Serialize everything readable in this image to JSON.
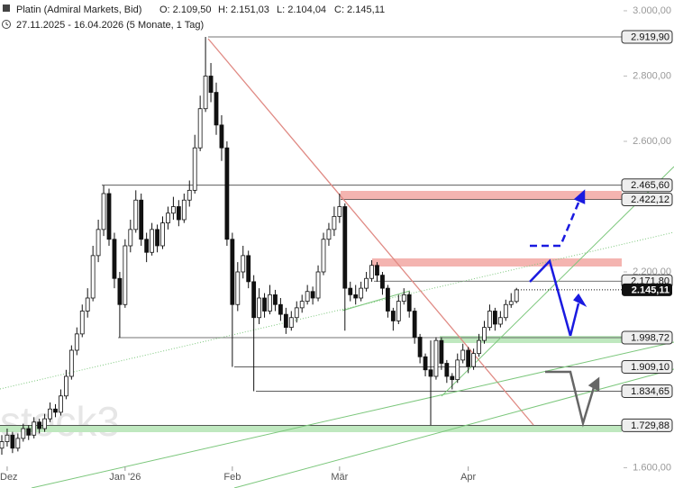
{
  "chart_data": {
    "type": "candlestick",
    "title": "Platin (Admiral Markets, Bid)",
    "ohlc_labels": [
      "O: 2.109,50",
      "H: 2.151,03",
      "L: 2.104,04",
      "C: 2.145,11"
    ],
    "period": "27.11.2025 - 16.04.2026 (5 Monate, 1 Tag)",
    "watermark": "stock3",
    "categories": [
      null,
      "Dez",
      null,
      null,
      null,
      null,
      null,
      null,
      null,
      null,
      null,
      null,
      null,
      null,
      null,
      null,
      null,
      null,
      null,
      null,
      null,
      null,
      null,
      "Jan '26",
      null,
      null,
      null,
      null,
      null,
      null,
      null,
      null,
      null,
      null,
      null,
      null,
      null,
      null,
      null,
      null,
      null,
      null,
      null,
      "Feb",
      null,
      null,
      null,
      null,
      null,
      null,
      null,
      null,
      null,
      null,
      null,
      null,
      null,
      null,
      null,
      null,
      null,
      null,
      null,
      "Mär",
      null,
      null,
      null,
      null,
      null,
      null,
      null,
      null,
      null,
      null,
      null,
      null,
      null,
      null,
      null,
      null,
      null,
      null,
      null,
      null,
      null,
      null,
      null,
      "Apr",
      null,
      null,
      null,
      null,
      null,
      null,
      null,
      null,
      null
    ],
    "open": [
      1660,
      1680,
      1700,
      1660,
      1690,
      1720,
      1700,
      1740,
      1720,
      1750,
      1780,
      1770,
      1820,
      1880,
      1960,
      2010,
      2080,
      2120,
      2250,
      2330,
      2440,
      2300,
      2180,
      2100,
      2280,
      2330,
      2420,
      2300,
      2260,
      2330,
      2280,
      2350,
      2380,
      2400,
      2360,
      2420,
      2450,
      2580,
      2700,
      2800,
      2750,
      2650,
      2580,
      2300,
      2100,
      2200,
      2250,
      2170,
      2060,
      2120,
      2080,
      2130,
      2100,
      2070,
      2030,
      2060,
      2090,
      2110,
      2140,
      2120,
      2200,
      2300,
      2330,
      2370,
      2400,
      2150,
      2130,
      2120,
      2150,
      2180,
      2220,
      2190,
      2150,
      2080,
      2050,
      2110,
      2130,
      2080,
      2000,
      1940,
      1900,
      1880,
      1990,
      1920,
      1880,
      1870,
      1930,
      1960,
      1910,
      1950,
      1990,
      2030,
      2080,
      2040,
      2060,
      2100,
      2109.5
    ],
    "high": [
      1700,
      1720,
      1710,
      1705,
      1735,
      1730,
      1755,
      1750,
      1765,
      1800,
      1795,
      1840,
      1900,
      1975,
      2030,
      2100,
      2150,
      2280,
      2360,
      2465.6,
      2455,
      2320,
      2200,
      2300,
      2360,
      2450,
      2440,
      2320,
      2350,
      2345,
      2370,
      2400,
      2430,
      2420,
      2440,
      2480,
      2620,
      2740,
      2919.9,
      2840,
      2780,
      2680,
      2600,
      2320,
      2230,
      2280,
      2265,
      2190,
      2150,
      2135,
      2160,
      2145,
      2120,
      2090,
      2080,
      2110,
      2130,
      2160,
      2155,
      2220,
      2320,
      2350,
      2400,
      2440,
      2410,
      2170,
      2160,
      2170,
      2200,
      2236,
      2230,
      2200,
      2160,
      2090,
      2130,
      2150,
      2140,
      2090,
      2010,
      1950,
      1990,
      2000,
      2000,
      1930,
      1890,
      1950,
      1980,
      1970,
      1965,
      2010,
      2050,
      2100,
      2090,
      2080,
      2115,
      2135,
      2151.03
    ],
    "low": [
      1640,
      1665,
      1645,
      1650,
      1680,
      1685,
      1690,
      1705,
      1710,
      1740,
      1755,
      1760,
      1810,
      1870,
      1945,
      2000,
      2060,
      2110,
      2230,
      2310,
      2280,
      2150,
      1998.72,
      2090,
      2260,
      2320,
      2280,
      2230,
      2250,
      2260,
      2270,
      2330,
      2360,
      2340,
      2350,
      2400,
      2440,
      2570,
      2690,
      2720,
      2620,
      2540,
      2280,
      1909.1,
      2080,
      2180,
      2150,
      1834.65,
      2040,
      2060,
      2070,
      2080,
      2050,
      2010,
      2020,
      2045,
      2075,
      2100,
      2100,
      2110,
      2190,
      2280,
      2310,
      2350,
      2020,
      2110,
      2100,
      2110,
      2140,
      2170,
      2170,
      2130,
      2060,
      2020,
      2040,
      2100,
      2060,
      1980,
      1920,
      1880,
      1729.88,
      1870,
      1900,
      1860,
      1840,
      1860,
      1920,
      1890,
      1900,
      1940,
      1980,
      2020,
      2020,
      2030,
      2050,
      2090,
      2104.04
    ],
    "close": [
      1680,
      1700,
      1660,
      1690,
      1720,
      1700,
      1740,
      1720,
      1750,
      1780,
      1770,
      1820,
      1880,
      1960,
      2010,
      2080,
      2120,
      2250,
      2330,
      2440,
      2300,
      2180,
      2100,
      2280,
      2330,
      2420,
      2300,
      2260,
      2330,
      2280,
      2350,
      2380,
      2400,
      2360,
      2420,
      2450,
      2580,
      2700,
      2800,
      2750,
      2650,
      2580,
      2300,
      2100,
      2200,
      2250,
      2170,
      2060,
      2120,
      2080,
      2130,
      2100,
      2070,
      2030,
      2060,
      2090,
      2110,
      2140,
      2120,
      2200,
      2300,
      2330,
      2370,
      2400,
      2150,
      2130,
      2120,
      2150,
      2180,
      2220,
      2190,
      2150,
      2080,
      2050,
      2110,
      2130,
      2080,
      2000,
      1940,
      1900,
      1880,
      1990,
      1920,
      1880,
      1870,
      1930,
      1960,
      1910,
      1950,
      1990,
      2030,
      2080,
      2040,
      2060,
      2100,
      2109.5,
      2145.11
    ],
    "ylim": [
      1538,
      3033
    ],
    "yticks": [
      {
        "value": 3000,
        "label": "3.000,00"
      },
      {
        "value": 2800,
        "label": "2.800,00"
      },
      {
        "value": 2600,
        "label": "2.600,00"
      },
      {
        "value": 2200,
        "label": "2.200,00"
      },
      {
        "value": 1600,
        "label": "1.600,00"
      }
    ],
    "levels": [
      {
        "value": 2919.9,
        "label": "2.919,90"
      },
      {
        "value": 2465.6,
        "label": "2.465,60"
      },
      {
        "value": 2422.12,
        "label": "2.422,12"
      },
      {
        "value": 2171.8,
        "label": "2.171,80"
      },
      {
        "value": 1998.72,
        "label": "1.998,72"
      },
      {
        "value": 1909.1,
        "label": "1.909,10"
      },
      {
        "value": 1834.65,
        "label": "1.834,65"
      },
      {
        "value": 1729.88,
        "label": "1.729,88"
      }
    ],
    "last_price": {
      "value": 2145.11,
      "label": "2.145,11"
    }
  }
}
